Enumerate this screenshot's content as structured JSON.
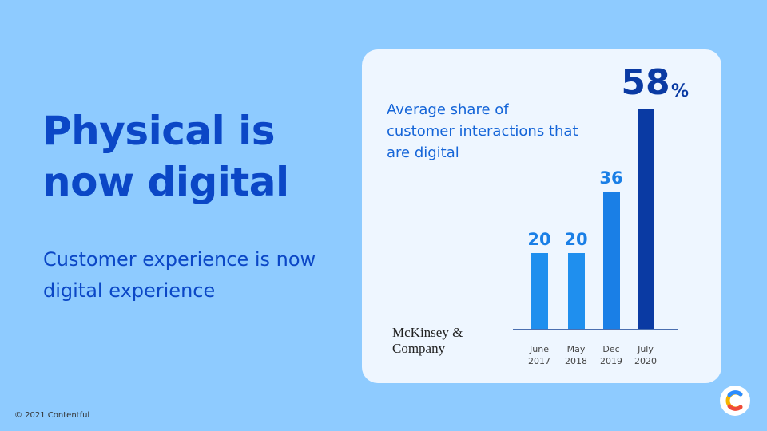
{
  "slide": {
    "title": "Physical is now digital",
    "subtitle": "Customer experience is now digital experience",
    "footer": "© 2021 Contentful",
    "source": "McKinsey & Company"
  },
  "chart_data": {
    "type": "bar",
    "title": "Average share of customer interactions that are digital",
    "categories": [
      "June 2017",
      "May 2018",
      "Dec 2019",
      "July 2020"
    ],
    "values": [
      20,
      20,
      36,
      58
    ],
    "unit": "%",
    "colors": [
      "#1f8fee",
      "#1f8fee",
      "#1a7fe6",
      "#0a3aa3"
    ],
    "ylim": [
      0,
      58
    ]
  }
}
